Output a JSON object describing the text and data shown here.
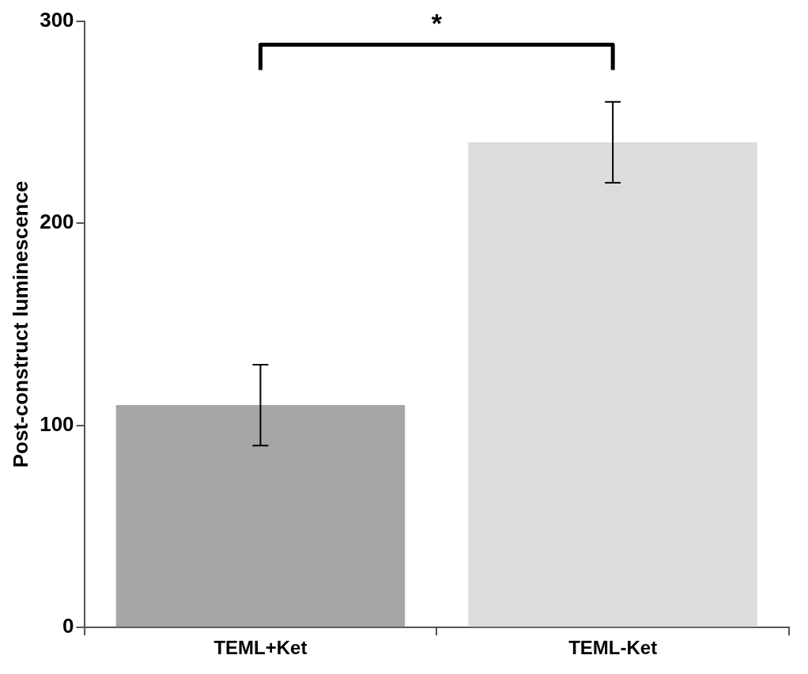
{
  "chart_data": {
    "type": "bar",
    "ylabel": "Post-construct luminescence",
    "categories": [
      "TEML+Ket",
      "TEML-Ket"
    ],
    "values": [
      110,
      240
    ],
    "errors": [
      20,
      20
    ],
    "colors": [
      "#a6a6a6",
      "#dcdcdc"
    ],
    "ylim": [
      0,
      300
    ],
    "yticks": [
      0,
      100,
      200,
      300
    ],
    "grid": false,
    "legend": false,
    "annotations": [
      "*"
    ]
  }
}
